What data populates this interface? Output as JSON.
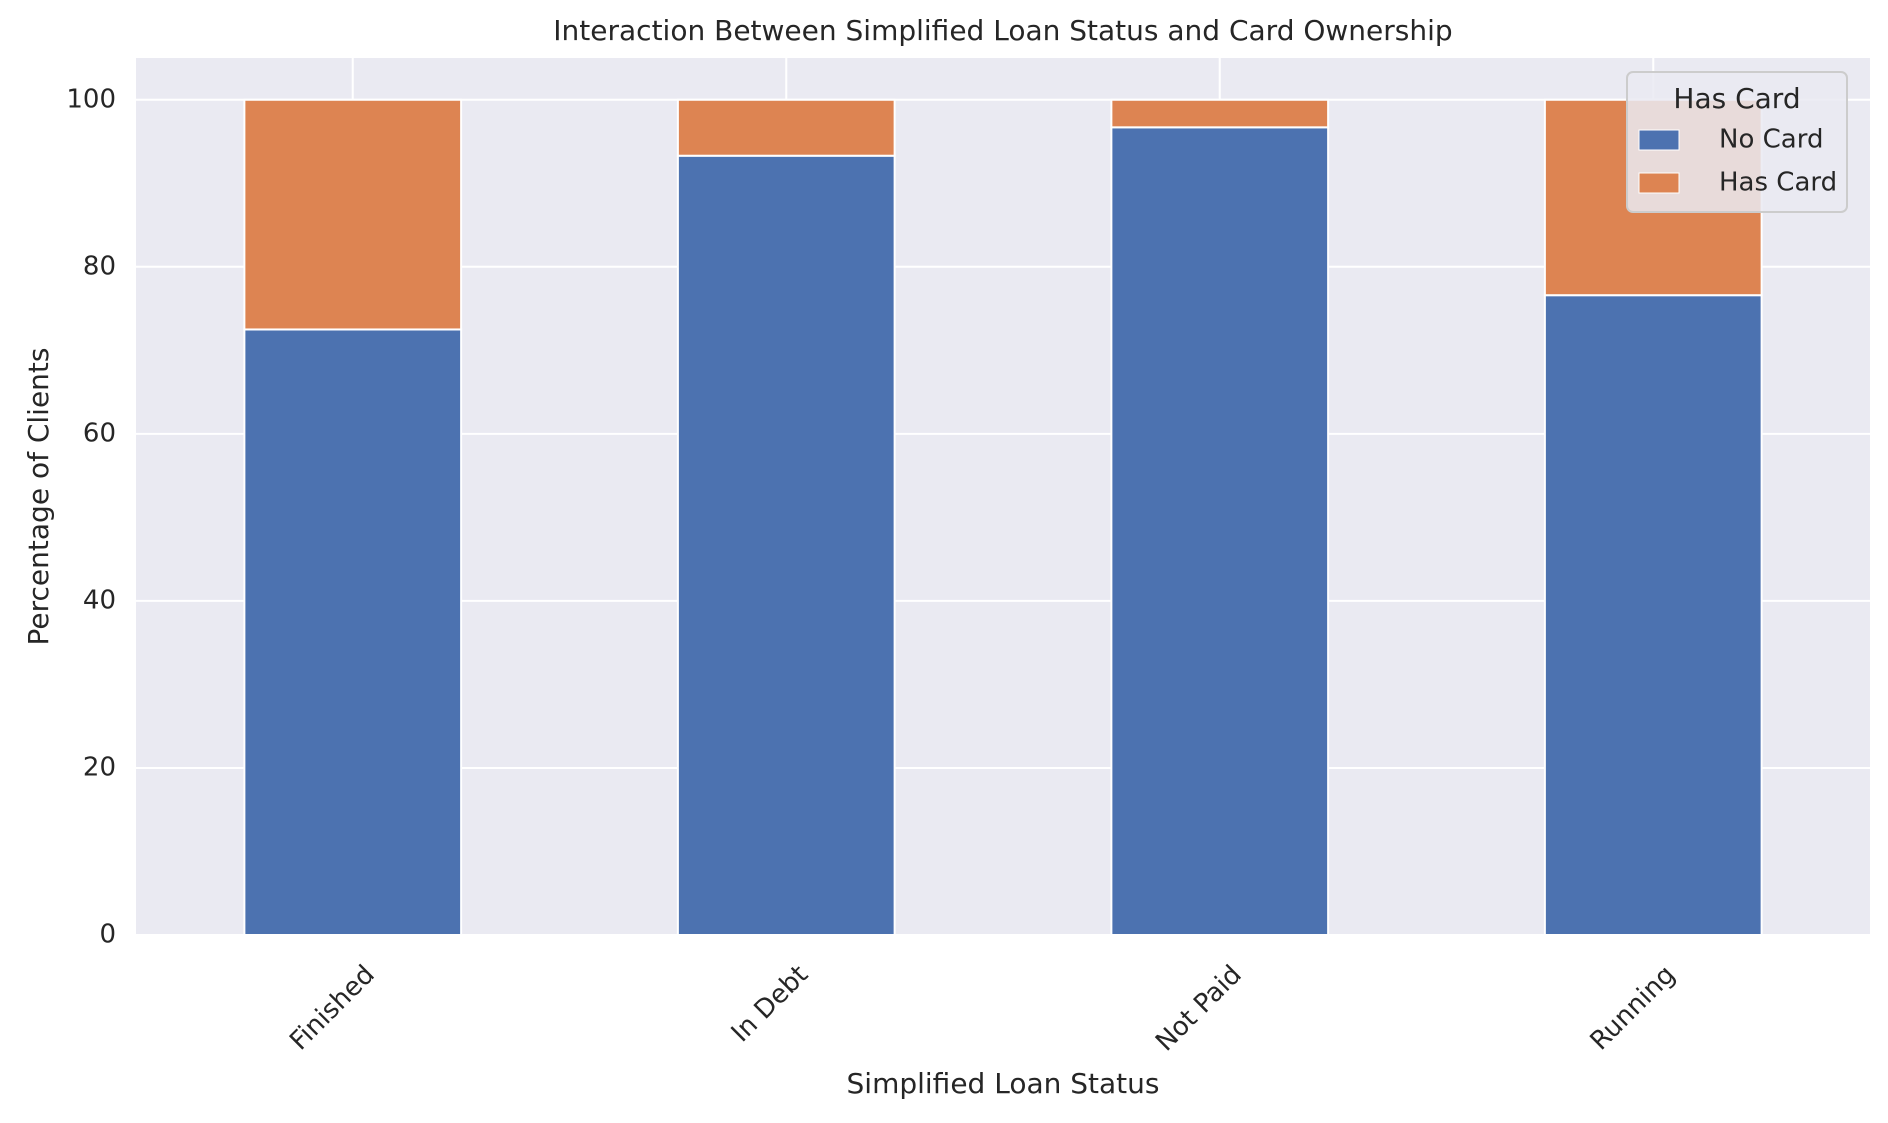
{
  "chart_data": {
    "type": "bar",
    "stacked": true,
    "title": "Interaction Between Simplified Loan Status and Card Ownership",
    "xlabel": "Simplified Loan Status",
    "ylabel": "Percentage of Clients",
    "categories": [
      "Finished",
      "In Debt",
      "Not Paid",
      "Running"
    ],
    "series": [
      {
        "name": "No Card",
        "color": "#4c72b0",
        "values": [
          72.5,
          93.3,
          96.7,
          76.6
        ]
      },
      {
        "name": "Has Card",
        "color": "#dd8452",
        "values": [
          27.5,
          6.7,
          3.3,
          23.4
        ]
      }
    ],
    "ylim": [
      0,
      105
    ],
    "yticks": [
      0,
      20,
      40,
      60,
      80,
      100
    ],
    "grid": true,
    "legend": {
      "title": "Has Card",
      "position": "top-right"
    },
    "style": {
      "axes_background": "#eaeaf2",
      "grid_color": "#ffffff"
    }
  }
}
